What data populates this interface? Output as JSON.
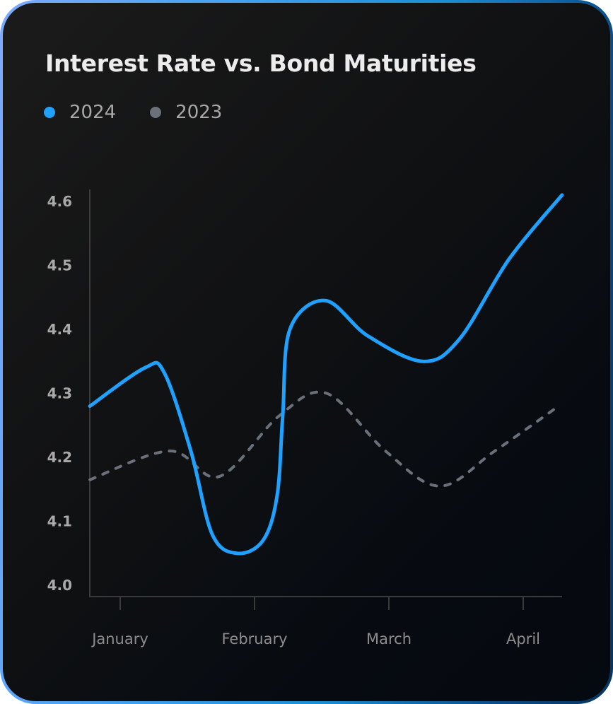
{
  "card": {
    "border_gradient": [
      "#7eaaff",
      "#1a8fd6",
      "#07345f"
    ],
    "background_gradient": [
      "#1b1b1b",
      "#050a10"
    ]
  },
  "header": {
    "title": "Interest Rate vs. Bond Maturities"
  },
  "legend": [
    {
      "label": "2024",
      "color": "#1ea1ff",
      "icon": "circle-dot-icon"
    },
    {
      "label": "2023",
      "color": "#6b717a",
      "icon": "circle-dot-icon"
    }
  ],
  "chart_data": {
    "type": "line",
    "title": "Interest Rate vs. Bond Maturities",
    "xlabel": "",
    "ylabel": "",
    "categories": [
      "January",
      "February",
      "March",
      "April"
    ],
    "yticks": [
      "4.0",
      "4.1",
      "4.2",
      "4.3",
      "4.4",
      "4.5",
      "4.6"
    ],
    "ylim": [
      4.0,
      4.6
    ],
    "grid": false,
    "legend_position": "top-left",
    "x_note": "x is month index (0=January, 1=February, 2=March, 3=April); plot spans -0.226 to 3.289",
    "series": [
      {
        "name": "2024",
        "color": "#1ea1ff",
        "style": "solid",
        "points": [
          [
            -0.226,
            4.28
          ],
          [
            0.184,
            4.34
          ],
          [
            0.326,
            4.333
          ],
          [
            0.526,
            4.21
          ],
          [
            0.684,
            4.08
          ],
          [
            0.868,
            4.05
          ],
          [
            1.063,
            4.07
          ],
          [
            1.168,
            4.14
          ],
          [
            1.21,
            4.265
          ],
          [
            1.263,
            4.4
          ],
          [
            1.526,
            4.445
          ],
          [
            1.842,
            4.39
          ],
          [
            2.253,
            4.35
          ],
          [
            2.526,
            4.385
          ],
          [
            2.895,
            4.51
          ],
          [
            3.289,
            4.61
          ]
        ]
      },
      {
        "name": "2023",
        "color": "#6b717a",
        "style": "dashed",
        "points": [
          [
            -0.226,
            4.165
          ],
          [
            0.368,
            4.21
          ],
          [
            0.737,
            4.17
          ],
          [
            1.184,
            4.265
          ],
          [
            1.537,
            4.3
          ],
          [
            1.974,
            4.21
          ],
          [
            2.379,
            4.155
          ],
          [
            2.789,
            4.21
          ],
          [
            3.263,
            4.28
          ]
        ]
      }
    ]
  }
}
